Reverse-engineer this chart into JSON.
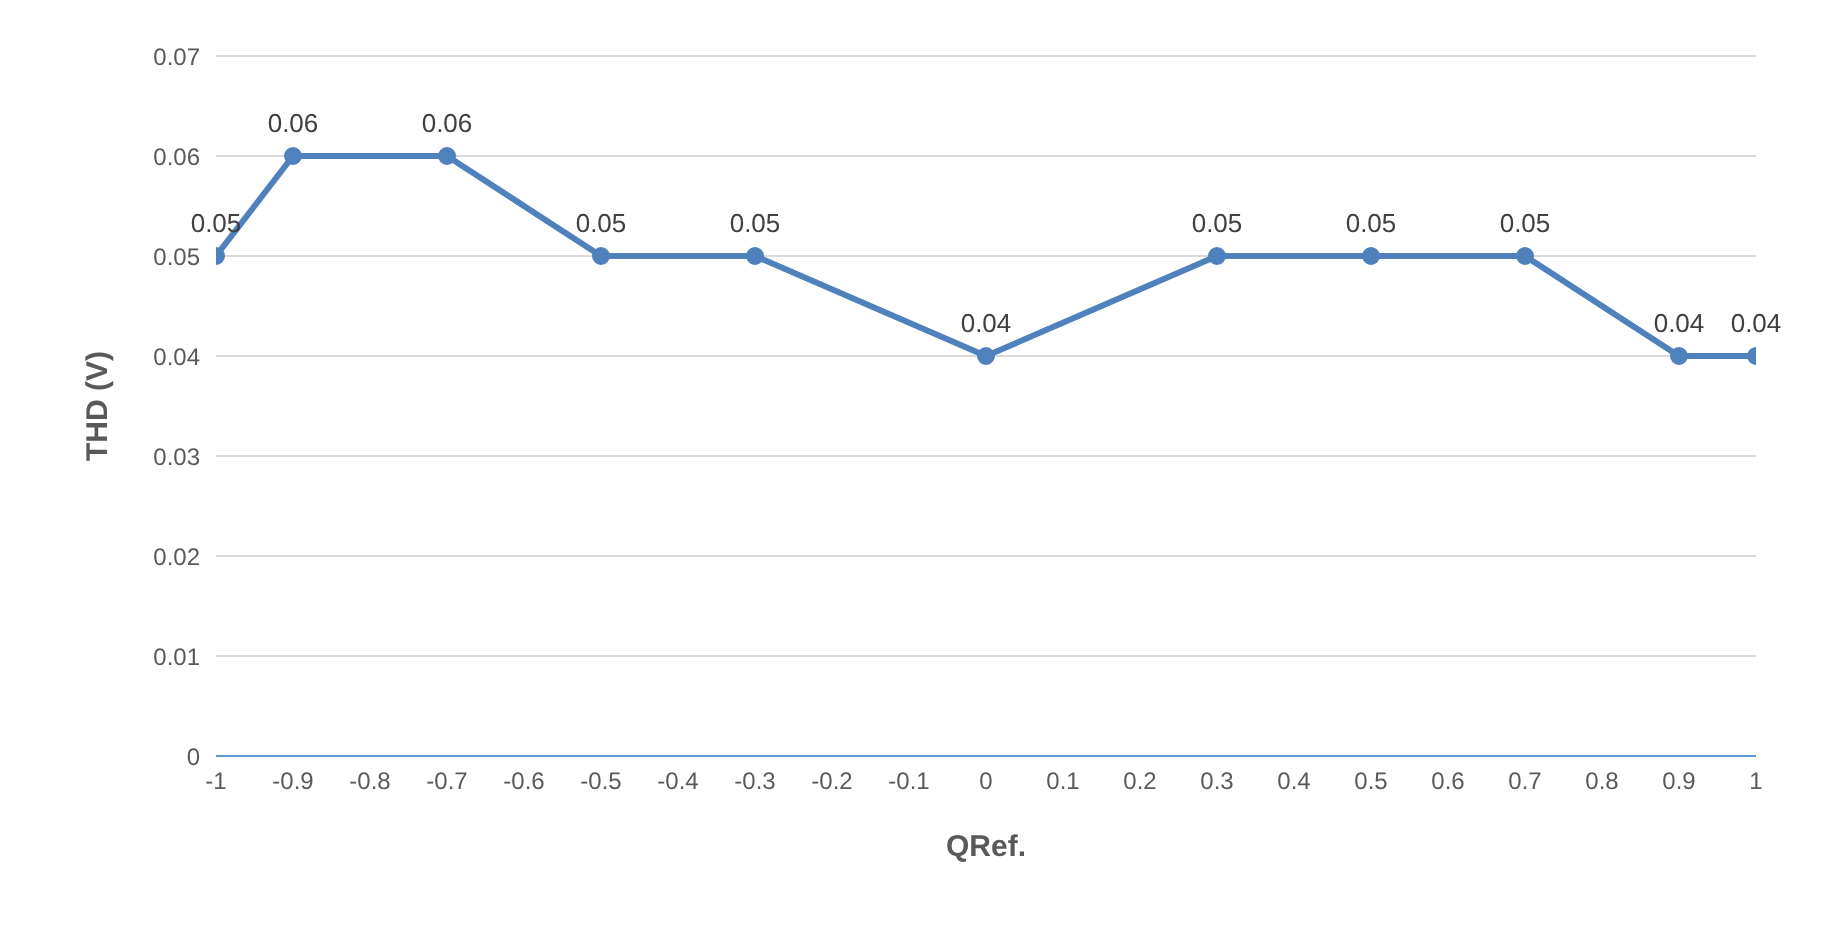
{
  "chart_data": {
    "type": "line",
    "xlabel": "QRef.",
    "ylabel": "THD (V)",
    "x": [
      -1,
      -0.9,
      -0.7,
      -0.5,
      -0.3,
      0,
      0.3,
      0.5,
      0.7,
      0.9,
      1
    ],
    "series": [
      {
        "color": "#4f81bd",
        "values": [
          0.05,
          0.06,
          0.06,
          0.05,
          0.05,
          0.04,
          0.05,
          0.05,
          0.05,
          0.04,
          0.04
        ]
      }
    ],
    "xlim": [
      -1,
      1
    ],
    "xticks": [
      -1,
      -0.9,
      -0.8,
      -0.7,
      -0.6,
      -0.5,
      -0.4,
      -0.3,
      -0.2,
      -0.1,
      0,
      0.1,
      0.2,
      0.3,
      0.4,
      0.5,
      0.6,
      0.7,
      0.8,
      0.9,
      1
    ],
    "ylim": [
      0,
      0.07
    ],
    "yticks": [
      0,
      0.01,
      0.02,
      0.03,
      0.04,
      0.05,
      0.06,
      0.07
    ],
    "grid": "y",
    "legend": false,
    "marker": "circle",
    "line_style": "solid",
    "data_labels": true
  }
}
